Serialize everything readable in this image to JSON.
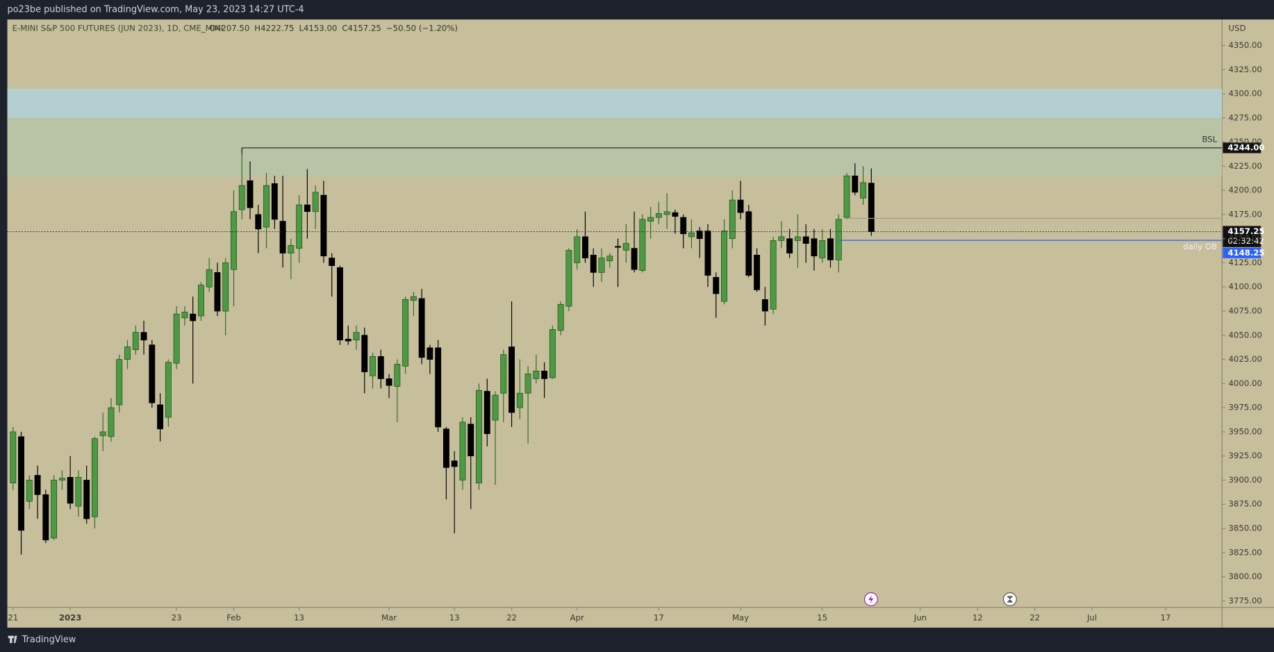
{
  "header": {
    "published": "po23be published on TradingView.com, May 23, 2023 14:27 UTC-4",
    "brand": "TradingView"
  },
  "chart_data": {
    "type": "candlestick",
    "title": "E-MINI S&P 500 FUTURES (JUN 2023), 1D, CME_MINI",
    "ohlc_labels": [
      "O4207.50",
      "H4222.75",
      "L4153.00",
      "C4157.25",
      "−50.50 (−1.20%)"
    ],
    "currency": "USD",
    "countdown": "02:32:42",
    "up_color": "#4c9a43",
    "down_color": "#000000",
    "open": [
      3897,
      3945,
      3878,
      3905,
      3885,
      3840,
      3900,
      3903,
      3873,
      3900,
      3862,
      3946,
      3945,
      3978,
      4025,
      4035,
      4053,
      4040,
      3978,
      3965,
      4021,
      4068,
      4072,
      4070,
      4100,
      4115,
      4075,
      4118,
      4180,
      4210,
      4175,
      4162,
      4207,
      4168,
      4135,
      4140,
      4185,
      4178,
      4195,
      4130,
      4120,
      4046,
      4045,
      4050,
      4008,
      4028,
      4005,
      3997,
      4018,
      4086,
      4088,
      4037,
      4037,
      3953,
      3920,
      3900,
      3958,
      3897,
      3992,
      3962,
      3990,
      4038,
      3975,
      3990,
      4005,
      4013,
      4006,
      4055,
      4080,
      4125,
      4152,
      4133,
      4115,
      4127,
      4142,
      4138,
      4140,
      4117,
      4168,
      4172,
      4175,
      4177,
      4172,
      4152,
      4158,
      4158,
      4110,
      4085,
      4150,
      4190,
      4178,
      4133,
      4087,
      4077,
      4148,
      4150,
      4148,
      4152,
      4150,
      4130,
      4150,
      4128,
      4172,
      4215,
      4192,
      4207.5
    ],
    "high": [
      3955,
      3950,
      3905,
      3915,
      3890,
      3905,
      3910,
      3925,
      3910,
      3915,
      3945,
      3970,
      3985,
      4030,
      4045,
      4060,
      4065,
      4045,
      3990,
      4025,
      4080,
      4080,
      4090,
      4105,
      4130,
      4125,
      4130,
      4200,
      4244,
      4230,
      4185,
      4218,
      4215,
      4215,
      4150,
      4195,
      4222,
      4205,
      4210,
      4135,
      4122,
      4060,
      4060,
      4058,
      4032,
      4035,
      4010,
      4025,
      4090,
      4095,
      4098,
      4040,
      4045,
      3955,
      3930,
      3965,
      3965,
      4000,
      4005,
      3992,
      4035,
      4085,
      4025,
      4018,
      4030,
      4022,
      4060,
      4085,
      4140,
      4160,
      4178,
      4140,
      4140,
      4135,
      4150,
      4165,
      4178,
      4175,
      4183,
      4188,
      4197,
      4180,
      4175,
      4170,
      4162,
      4165,
      4115,
      4170,
      4200,
      4210,
      4185,
      4140,
      4100,
      4152,
      4168,
      4160,
      4175,
      4165,
      4160,
      4160,
      4160,
      4175,
      4218,
      4228,
      4225,
      4222.75
    ],
    "low": [
      3890,
      3823,
      3870,
      3860,
      3835,
      3838,
      3890,
      3870,
      3862,
      3855,
      3850,
      3930,
      3940,
      3970,
      4015,
      4030,
      4030,
      3975,
      3940,
      3955,
      4015,
      4060,
      4000,
      4065,
      4095,
      4070,
      4050,
      4080,
      4170,
      4170,
      4135,
      4140,
      4160,
      4120,
      4108,
      4125,
      4150,
      4160,
      4125,
      4090,
      4040,
      4040,
      4035,
      3990,
      3995,
      3995,
      3985,
      3960,
      4010,
      4070,
      4020,
      4010,
      3950,
      3880,
      3845,
      3890,
      3870,
      3890,
      3935,
      3895,
      3960,
      3955,
      3963,
      3938,
      4000,
      3985,
      4005,
      4050,
      4075,
      4118,
      4125,
      4100,
      4105,
      4120,
      4100,
      4125,
      4115,
      4115,
      4150,
      4165,
      4160,
      4155,
      4140,
      4140,
      4130,
      4100,
      4068,
      4082,
      4140,
      4170,
      4110,
      4095,
      4060,
      4072,
      4140,
      4130,
      4120,
      4125,
      4117,
      4125,
      4120,
      4115,
      4170,
      4195,
      4185,
      4153
    ],
    "close": [
      3950,
      3848,
      3900,
      3885,
      3838,
      3900,
      3902,
      3876,
      3903,
      3860,
      3943,
      3950,
      3975,
      4025,
      4038,
      4053,
      4045,
      3980,
      3953,
      4022,
      4072,
      4074,
      4065,
      4102,
      4118,
      4075,
      4125,
      4178,
      4205,
      4182,
      4160,
      4205,
      4170,
      4135,
      4143,
      4185,
      4178,
      4198,
      4132,
      4122,
      4045,
      4044,
      4053,
      4012,
      4028,
      4005,
      3998,
      4020,
      4087,
      4090,
      4027,
      4025,
      3955,
      3913,
      3914,
      3960,
      3925,
      3993,
      3948,
      3988,
      4030,
      3970,
      3990,
      4010,
      4013,
      4005,
      4056,
      4082,
      4138,
      4152,
      4130,
      4115,
      4130,
      4132,
      4141,
      4145,
      4118,
      4170,
      4172,
      4176,
      4178,
      4173,
      4155,
      4156,
      4150,
      4112,
      4093,
      4158,
      4190,
      4177,
      4112,
      4097,
      4075,
      4148,
      4152,
      4135,
      4152,
      4145,
      4132,
      4148,
      4128,
      4170,
      4215,
      4198,
      4208,
      4157.25
    ],
    "xlim": [
      -0.7,
      147.9
    ],
    "xticks": [
      {
        "value": 0,
        "label": "21"
      },
      {
        "value": 7,
        "label": "2023"
      },
      {
        "value": 20,
        "label": "23"
      },
      {
        "value": 27,
        "label": "Feb"
      },
      {
        "value": 35,
        "label": "13"
      },
      {
        "value": 46,
        "label": "Mar"
      },
      {
        "value": 54,
        "label": "13"
      },
      {
        "value": 61,
        "label": "22"
      },
      {
        "value": 69,
        "label": "Apr"
      },
      {
        "value": 79,
        "label": "17"
      },
      {
        "value": 89,
        "label": "May"
      },
      {
        "value": 99,
        "label": "15"
      },
      {
        "value": 111,
        "label": "Jun"
      },
      {
        "value": 118,
        "label": "12"
      },
      {
        "value": 125,
        "label": "22"
      },
      {
        "value": 132,
        "label": "Jul"
      },
      {
        "value": 141,
        "label": "17"
      }
    ],
    "ylim": [
      3768.3,
      4376.9
    ],
    "yticks": [
      {
        "value": 3775,
        "label": "3775.00"
      },
      {
        "value": 3800,
        "label": "3800.00"
      },
      {
        "value": 3825,
        "label": "3825.00"
      },
      {
        "value": 3850,
        "label": "3850.00"
      },
      {
        "value": 3875,
        "label": "3875.00"
      },
      {
        "value": 3900,
        "label": "3900.00"
      },
      {
        "value": 3925,
        "label": "3925.00"
      },
      {
        "value": 3950,
        "label": "3950.00"
      },
      {
        "value": 3975,
        "label": "3975.00"
      },
      {
        "value": 4000,
        "label": "4000.00"
      },
      {
        "value": 4025,
        "label": "4025.00"
      },
      {
        "value": 4050,
        "label": "4050.00"
      },
      {
        "value": 4075,
        "label": "4075.00"
      },
      {
        "value": 4100,
        "label": "4100.00"
      },
      {
        "value": 4125,
        "label": "4125.00"
      },
      {
        "value": 4150,
        "label": "4150.00"
      },
      {
        "value": 4175,
        "label": "4175.00"
      },
      {
        "value": 4200,
        "label": "4200.00"
      },
      {
        "value": 4225,
        "label": "4225.00"
      },
      {
        "value": 4250,
        "label": "4250.00"
      },
      {
        "value": 4275,
        "label": "4275.00"
      },
      {
        "value": 4300,
        "label": "4300.00"
      },
      {
        "value": 4325,
        "label": "4325.00"
      },
      {
        "value": 4350,
        "label": "4350.00"
      }
    ],
    "zones": [
      {
        "from": 4275,
        "to": 4305,
        "color": "#b3cfd1"
      },
      {
        "from": 4214,
        "to": 4275,
        "color": "#b8c4a5"
      }
    ],
    "levels": [
      {
        "name": "BSL",
        "value": 4244,
        "value_label": "4244.00",
        "start": 28,
        "color": "#1c1c1c"
      },
      {
        "name": "daily OB",
        "value": 4148.25,
        "start": 101,
        "color": "#2962ff"
      },
      {
        "value": 4171,
        "start": 102,
        "color": "#a09f90"
      }
    ]
  }
}
